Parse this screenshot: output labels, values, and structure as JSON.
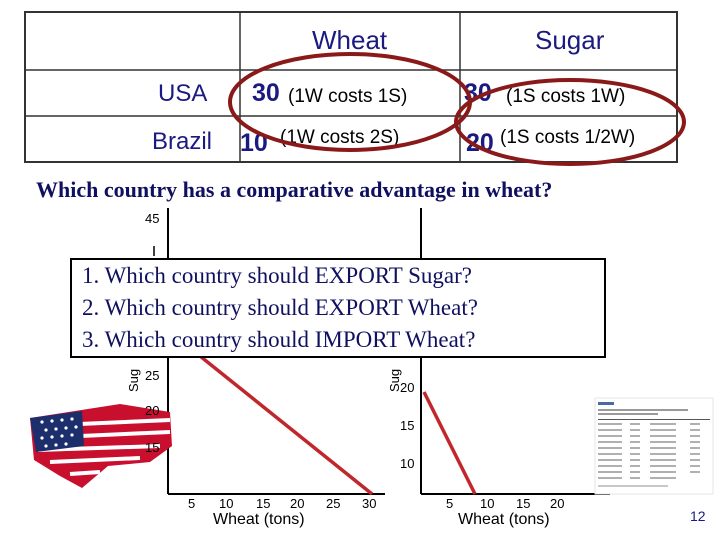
{
  "table": {
    "col_wheat": "Wheat",
    "col_sugar": "Sugar",
    "rows": [
      {
        "country": "USA",
        "wheat_value": "30",
        "wheat_cost": "(1W costs 1S)",
        "sugar_value": "30",
        "sugar_cost": "(1S costs 1W)"
      },
      {
        "country": "Brazil",
        "wheat_value": "10",
        "wheat_cost": "(1W costs 2S)",
        "sugar_value": "20",
        "sugar_cost": "(1S costs 1/2W)"
      }
    ]
  },
  "question_title": "Which country has a comparative advantage in wheat?",
  "questions": [
    "1.  Which country should EXPORT Sugar?",
    "2.  Which country should EXPORT Wheat?",
    "3.  Which country should IMPORT Wheat?"
  ],
  "left_chart": {
    "ytick_labels": [
      "45",
      "25",
      "20",
      "15"
    ],
    "xtick_labels": [
      "5",
      "10",
      "15",
      "20",
      "25",
      "30"
    ],
    "ylabel_fragment": "Sug",
    "xlabel": "Wheat (tons)"
  },
  "right_chart": {
    "ytick_labels": [
      "20",
      "15",
      "10"
    ],
    "xtick_labels": [
      "5",
      "10",
      "15",
      "20"
    ],
    "ylabel_fragment": "Sug",
    "xlabel": "Wheat (tons)"
  },
  "slide_number": "12",
  "colors": {
    "title_blue": "#1a1a80",
    "circle_red": "#8a1a1a",
    "line_red": "#c0272d"
  }
}
